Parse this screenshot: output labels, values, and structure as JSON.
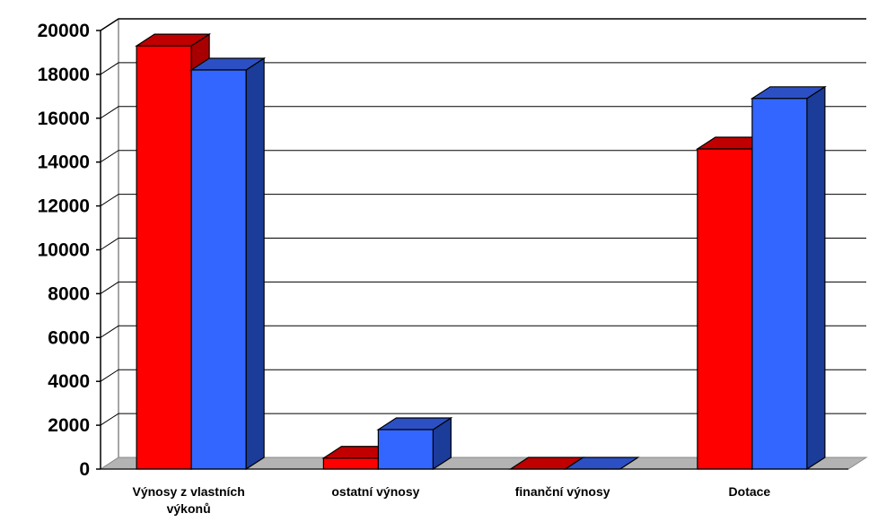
{
  "chart_data": {
    "type": "bar",
    "title": "",
    "xlabel": "",
    "ylabel": "",
    "ylim": [
      0,
      20000
    ],
    "yticks": [
      0,
      2000,
      4000,
      6000,
      8000,
      10000,
      12000,
      14000,
      16000,
      18000,
      20000
    ],
    "grid": true,
    "legend": "none",
    "style": "3d-clustered-column",
    "categories": [
      "Výnosy z vlastních výkonů",
      "ostatní výnosy",
      "finanční výnosy",
      "Dotace"
    ],
    "series": [
      {
        "values": [
          19300,
          500,
          0,
          14600
        ],
        "color": "#ff0000"
      },
      {
        "values": [
          18200,
          1800,
          0,
          16900
        ],
        "color": "#3366ff"
      }
    ],
    "colors": {
      "floor": "#b3b3b3",
      "gridline": "#000000",
      "series_1_side": "#a80000",
      "series_1_top": "#c00000",
      "series_2_side": "#1c3c9a",
      "series_2_top": "#2c50c4"
    }
  }
}
